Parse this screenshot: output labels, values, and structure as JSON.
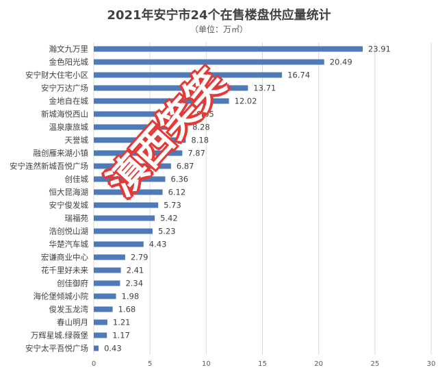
{
  "chart_data": {
    "type": "bar",
    "orientation": "horizontal",
    "title": "2021年安宁市24个在售楼盘供应量统计",
    "subtitle": "（单位：万㎡）",
    "categories": [
      "瀚文九万里",
      "金色阳光城",
      "安宁财大住宅小区",
      "安宁万达广场",
      "金地自在城",
      "新城海悦西山",
      "温泉康旅城",
      "天誉城",
      "融创雁来湖小镇",
      "安宁连然新城吾悦广场",
      "创佳城",
      "恒大昆海湖",
      "安宁俊发城",
      "瑞福苑",
      "浩创悦山湖",
      "华楚汽车城",
      "宏谦商业中心",
      "花千里好未来",
      "创佳御府",
      "海伦堡倾城小院",
      "俊发玉龙湾",
      "春山明月",
      "万辉星城.绿薇堡",
      "安宁太平吾悦广场"
    ],
    "values": [
      23.91,
      20.49,
      16.74,
      13.71,
      12.02,
      8.65,
      8.28,
      8.18,
      7.87,
      6.87,
      6.36,
      6.12,
      5.73,
      5.42,
      5.23,
      4.43,
      2.79,
      2.41,
      2.34,
      1.98,
      1.68,
      1.21,
      1.17,
      0.43
    ],
    "value_labels": [
      "23.91",
      "20.49",
      "16.74",
      "13.71",
      "12.02",
      "8.65",
      "8.28",
      "8.18",
      "7.87",
      "6.87",
      "6.36",
      "6.12",
      "5.73",
      "5.42",
      "5.23",
      "4.43",
      "2.79",
      "2.41",
      "2.34",
      "1.98",
      "1.68",
      "1.21",
      "1.17",
      "0.43"
    ],
    "xlim": [
      0,
      30
    ],
    "xticks": [
      0,
      5,
      10,
      15,
      20,
      25,
      30
    ],
    "grid": true,
    "bar_color": "#4e7ab7",
    "legend": "none"
  },
  "watermark": {
    "text": "滇西笑笑",
    "color": "#e53935"
  }
}
